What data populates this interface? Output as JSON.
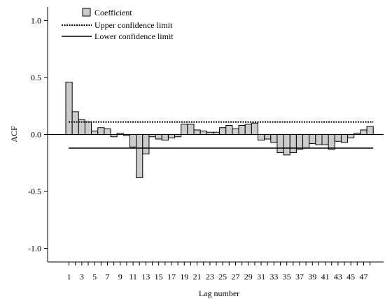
{
  "chart_data": {
    "type": "bar",
    "xlabel": "Lag number",
    "ylabel": "ACF",
    "ylim": [
      -1.1,
      1.1
    ],
    "y_ticks": [
      "1.0",
      "0.5",
      "0.0",
      "-0.5",
      "-1.0"
    ],
    "y_tick_values": [
      1.0,
      0.5,
      0.0,
      -0.5,
      -1.0
    ],
    "x_ticks": [
      "1",
      "3",
      "5",
      "7",
      "9",
      "11",
      "13",
      "15",
      "17",
      "19",
      "21",
      "23",
      "25",
      "27",
      "29",
      "31",
      "33",
      "35",
      "37",
      "39",
      "41",
      "43",
      "45",
      "47"
    ],
    "lags": [
      1,
      2,
      3,
      4,
      5,
      6,
      7,
      8,
      9,
      10,
      11,
      12,
      13,
      14,
      15,
      16,
      17,
      18,
      19,
      20,
      21,
      22,
      23,
      24,
      25,
      26,
      27,
      28,
      29,
      30,
      31,
      32,
      33,
      34,
      35,
      36,
      37,
      38,
      39,
      40,
      41,
      42,
      43,
      44,
      45,
      46,
      47,
      48
    ],
    "series": [
      {
        "name": "Coefficient",
        "values": [
          0.46,
          0.2,
          0.13,
          0.11,
          0.03,
          0.06,
          0.05,
          -0.02,
          0.01,
          -0.01,
          -0.11,
          -0.38,
          -0.17,
          -0.02,
          -0.04,
          -0.05,
          -0.03,
          -0.02,
          0.09,
          0.09,
          0.04,
          0.03,
          0.02,
          0.02,
          0.06,
          0.08,
          0.05,
          0.08,
          0.09,
          0.1,
          -0.05,
          -0.04,
          -0.07,
          -0.16,
          -0.18,
          -0.16,
          -0.13,
          -0.12,
          -0.08,
          -0.09,
          -0.09,
          -0.13,
          -0.06,
          -0.07,
          -0.03,
          0.01,
          0.04,
          0.07
        ]
      }
    ],
    "confidence_limits": {
      "upper": 0.11,
      "lower": -0.12
    },
    "legend": {
      "position": "top-left",
      "items": [
        "Coefficient",
        "Upper confidence limit",
        "Lower confidence limit"
      ]
    },
    "colors": {
      "bar_fill": "#cccccc",
      "bar_stroke": "#000000",
      "line": "#000000"
    },
    "grid": false
  }
}
